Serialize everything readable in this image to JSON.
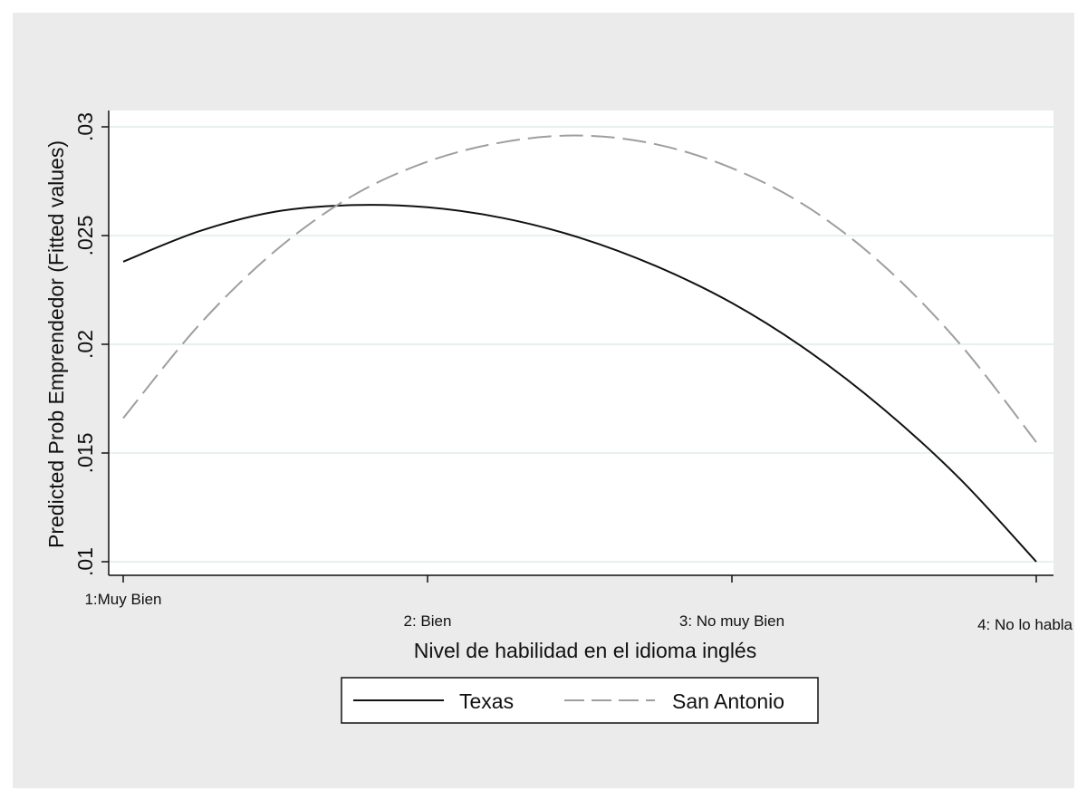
{
  "chart_data": {
    "type": "line",
    "xlabel": "Nivel de habilidad en el idioma inglés",
    "ylabel": "Predicted Prob Emprendedor (Fitted values)",
    "xlim": [
      1,
      4
    ],
    "ylim": [
      0.01,
      0.03
    ],
    "xticks": [
      {
        "value": 1,
        "label": "1:Muy Bien"
      },
      {
        "value": 2,
        "label": "2: Bien"
      },
      {
        "value": 3,
        "label": "3: No muy Bien"
      },
      {
        "value": 4,
        "label": "4: No lo habla"
      }
    ],
    "yticks": [
      {
        "value": 0.01,
        "label": ".01"
      },
      {
        "value": 0.015,
        "label": ".015"
      },
      {
        "value": 0.02,
        "label": ".02"
      },
      {
        "value": 0.025,
        "label": ".025"
      },
      {
        "value": 0.03,
        "label": ".03"
      }
    ],
    "grid": true,
    "legend_position": "bottom",
    "series": [
      {
        "name": "Texas",
        "style": "solid",
        "color": "#111111",
        "x": [
          1.0,
          1.25,
          1.5,
          1.75,
          2.0,
          2.25,
          2.5,
          2.75,
          3.0,
          3.25,
          3.5,
          3.75,
          4.0
        ],
        "y": [
          0.0238,
          0.0252,
          0.0261,
          0.0264,
          0.0263,
          0.0258,
          0.0249,
          0.0236,
          0.0219,
          0.0197,
          0.017,
          0.0138,
          0.01
        ]
      },
      {
        "name": "San Antonio",
        "style": "dashed",
        "color": "#9e9e9e",
        "x": [
          1.0,
          1.25,
          1.5,
          1.75,
          2.0,
          2.25,
          2.5,
          2.75,
          3.0,
          3.25,
          3.5,
          3.75,
          4.0
        ],
        "y": [
          0.0166,
          0.0209,
          0.0243,
          0.0268,
          0.0284,
          0.0293,
          0.0296,
          0.0292,
          0.0281,
          0.0263,
          0.0236,
          0.02,
          0.0155
        ]
      }
    ]
  },
  "colors": {
    "outer_background": "#ebebeb",
    "plot_background": "#ffffff",
    "grid": "#e0ecec",
    "axis": "#111111"
  }
}
